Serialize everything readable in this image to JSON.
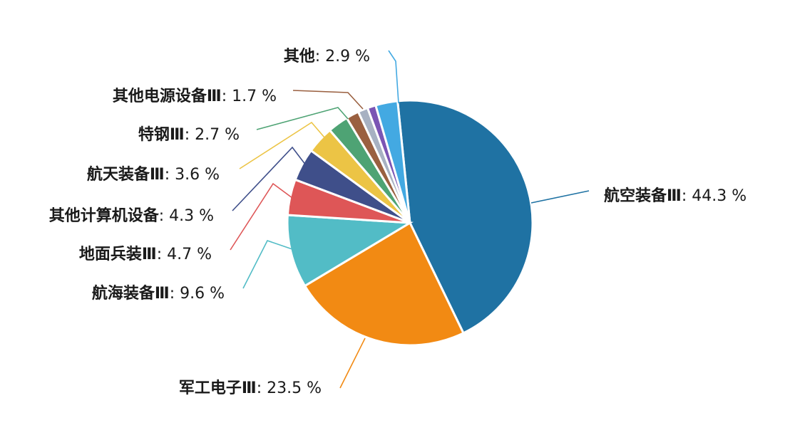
{
  "chart_data": {
    "type": "pie",
    "unit": "%",
    "start_angle_deg": -5.8,
    "direction": "clockwise",
    "slices": [
      {
        "label": "航空装备Ⅲ",
        "value": 44.3,
        "value_text": "44.3 %",
        "color": "#1f72a3"
      },
      {
        "label": "军工电子Ⅲ",
        "value": 23.5,
        "value_text": "23.5 %",
        "color": "#f28a13"
      },
      {
        "label": "航海装备Ⅲ",
        "value": 9.6,
        "value_text": "9.6 %",
        "color": "#52bcc6"
      },
      {
        "label": "地面兵装Ⅲ",
        "value": 4.7,
        "value_text": "4.7 %",
        "color": "#de5657"
      },
      {
        "label": "其他计算机设备",
        "value": 4.3,
        "value_text": "4.3 %",
        "color": "#3f4f8a"
      },
      {
        "label": "航天装备Ⅲ",
        "value": 3.6,
        "value_text": "3.6 %",
        "color": "#ecc445"
      },
      {
        "label": "特钢Ⅲ",
        "value": 2.7,
        "value_text": "2.7 %",
        "color": "#4ea374"
      },
      {
        "label": "其他电源设备Ⅲ",
        "value": 1.7,
        "value_text": "1.7 %",
        "color": "#9a6040"
      },
      {
        "label": "",
        "value": 1.3,
        "value_text": "",
        "color": "#a7b1c2"
      },
      {
        "label": "",
        "value": 1.1,
        "value_text": "",
        "color": "#7b55b4"
      },
      {
        "label": "其他",
        "value": 2.9,
        "value_text": "2.9 %",
        "color": "#43a9e2"
      }
    ]
  }
}
